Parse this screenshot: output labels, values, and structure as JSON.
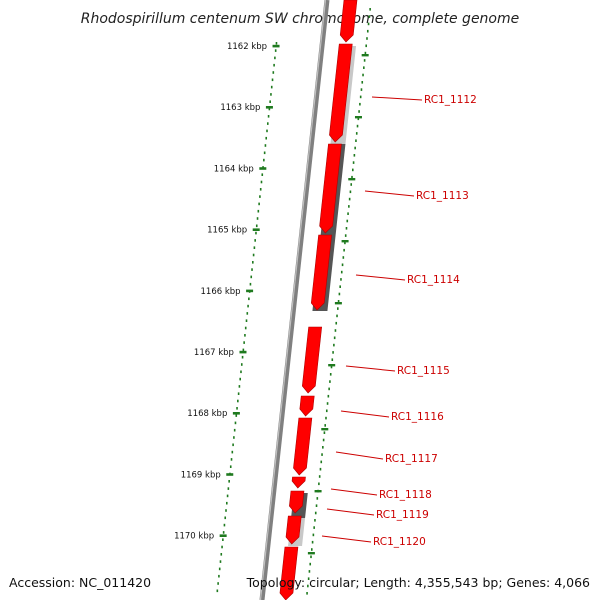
{
  "title": "Rhodospirillum centenum SW chromosome, complete genome",
  "footer": {
    "accession": "Accession: NC_011420",
    "summary": "Topology: circular; Length: 4,355,543 bp; Genes: 4,066"
  },
  "kbp_labels": [
    "1162 kbp",
    "1163 kbp",
    "1164 kbp",
    "1165 kbp",
    "1166 kbp",
    "1167 kbp",
    "1168 kbp",
    "1169 kbp",
    "1170 kbp"
  ],
  "gene_labels": [
    "RC1_1112",
    "RC1_1113",
    "RC1_1114",
    "RC1_1115",
    "RC1_1116",
    "RC1_1117",
    "RC1_1118",
    "RC1_1119",
    "RC1_1120"
  ],
  "colors": {
    "gene_fill": "#ff0000",
    "gene_edge": "#b00000",
    "backbone": "#808080",
    "tick": "#1f7a1f",
    "leader": "#cc0000",
    "gc_dark": "#555555",
    "gc_light": "#c8c8c8"
  }
}
